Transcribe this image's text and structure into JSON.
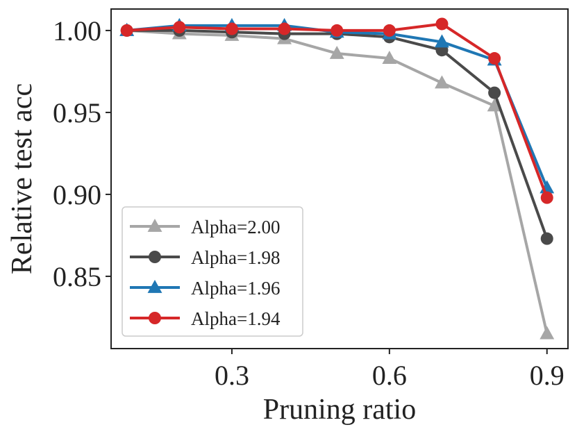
{
  "chart_data": {
    "type": "line",
    "title": "",
    "xlabel": "Pruning ratio",
    "ylabel": "Relative test acc",
    "x": [
      0.1,
      0.2,
      0.3,
      0.4,
      0.5,
      0.6,
      0.7,
      0.8,
      0.9
    ],
    "xticks": [
      0.3,
      0.6,
      0.9
    ],
    "xtick_labels": [
      "0.3",
      "0.6",
      "0.9"
    ],
    "yticks": [
      0.85,
      0.9,
      0.95,
      1.0
    ],
    "ytick_labels": [
      "0.85",
      "0.90",
      "0.95",
      "1.00"
    ],
    "xlim": [
      0.07,
      0.94
    ],
    "ylim": [
      0.8059,
      1.0131
    ],
    "grid": false,
    "legend_position": "lower-left",
    "series": [
      {
        "name": "Alpha=2.00",
        "color": "#a6a6a6",
        "marker": "triangle",
        "values": [
          1.0,
          0.998,
          0.997,
          0.995,
          0.986,
          0.983,
          0.968,
          0.954,
          0.815
        ]
      },
      {
        "name": "Alpha=1.98",
        "color": "#4a4a4a",
        "marker": "circle",
        "values": [
          1.0,
          1.0,
          0.999,
          0.998,
          0.998,
          0.996,
          0.988,
          0.962,
          0.873
        ]
      },
      {
        "name": "Alpha=1.96",
        "color": "#1f77b4",
        "marker": "triangle",
        "values": [
          1.0,
          1.003,
          1.003,
          1.003,
          0.999,
          0.998,
          0.993,
          0.982,
          0.904
        ]
      },
      {
        "name": "Alpha=1.94",
        "color": "#d62728",
        "marker": "circle",
        "values": [
          1.0,
          1.002,
          1.001,
          1.001,
          1.0,
          1.0,
          1.004,
          0.983,
          0.898
        ]
      }
    ]
  }
}
